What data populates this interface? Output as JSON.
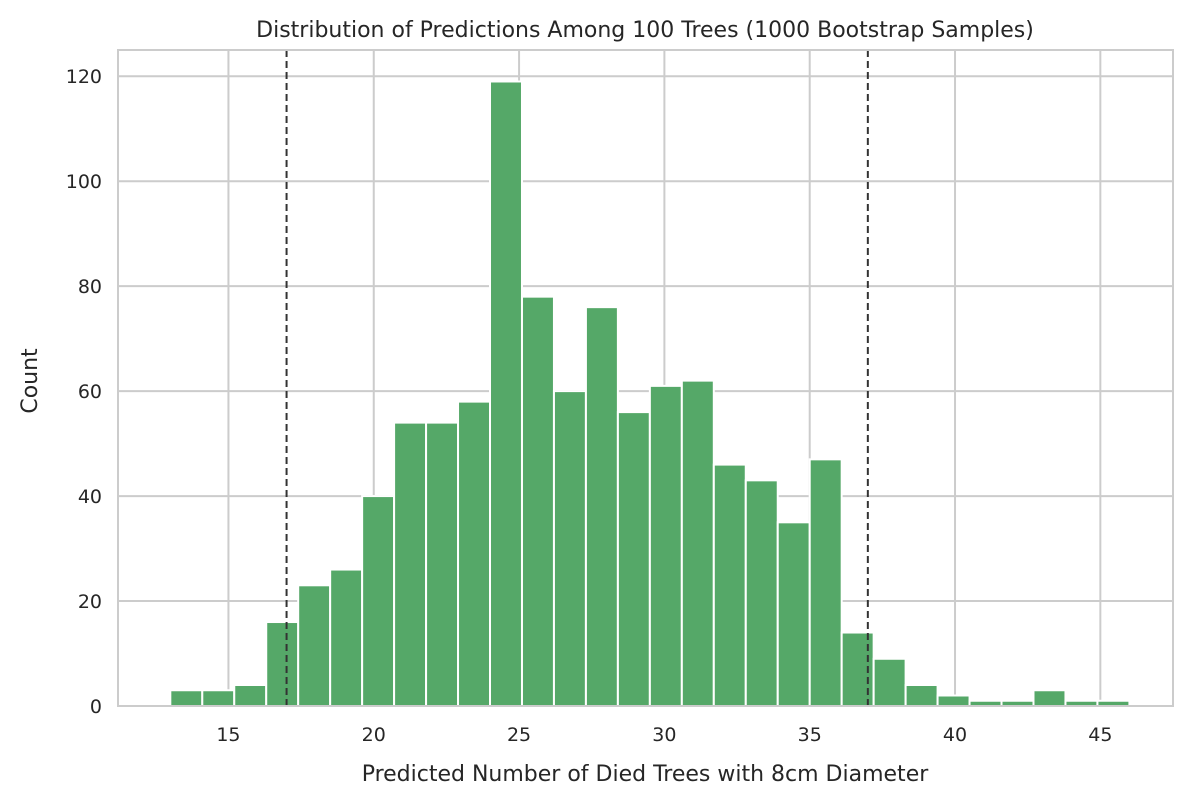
{
  "chart_data": {
    "type": "bar",
    "title": "Distribution of Predictions Among 100 Trees (1000 Bootstrap Samples)",
    "xlabel": "Predicted Number of Died Trees with 8cm Diameter",
    "ylabel": "Count",
    "xlim": [
      11.2,
      47.5
    ],
    "ylim": [
      0,
      125
    ],
    "xticks": [
      15,
      20,
      25,
      30,
      35,
      40,
      45
    ],
    "yticks": [
      0,
      20,
      40,
      60,
      80,
      100,
      120
    ],
    "grid": true,
    "bin_width": 1.1,
    "bins": [
      {
        "x_start": 13.0,
        "count": 3
      },
      {
        "x_start": 14.1,
        "count": 3
      },
      {
        "x_start": 15.2,
        "count": 4
      },
      {
        "x_start": 16.3,
        "count": 16
      },
      {
        "x_start": 17.4,
        "count": 23
      },
      {
        "x_start": 18.5,
        "count": 26
      },
      {
        "x_start": 19.6,
        "count": 40
      },
      {
        "x_start": 20.7,
        "count": 54
      },
      {
        "x_start": 21.8,
        "count": 54
      },
      {
        "x_start": 22.9,
        "count": 58
      },
      {
        "x_start": 24.0,
        "count": 119
      },
      {
        "x_start": 25.1,
        "count": 78
      },
      {
        "x_start": 26.2,
        "count": 60
      },
      {
        "x_start": 27.3,
        "count": 76
      },
      {
        "x_start": 28.4,
        "count": 56
      },
      {
        "x_start": 29.5,
        "count": 61
      },
      {
        "x_start": 30.6,
        "count": 62
      },
      {
        "x_start": 31.7,
        "count": 46
      },
      {
        "x_start": 32.8,
        "count": 43
      },
      {
        "x_start": 33.9,
        "count": 35
      },
      {
        "x_start": 35.0,
        "count": 47
      },
      {
        "x_start": 36.1,
        "count": 14
      },
      {
        "x_start": 37.2,
        "count": 9
      },
      {
        "x_start": 38.3,
        "count": 4
      },
      {
        "x_start": 39.4,
        "count": 2
      },
      {
        "x_start": 40.5,
        "count": 1
      },
      {
        "x_start": 41.6,
        "count": 1
      },
      {
        "x_start": 42.7,
        "count": 3
      },
      {
        "x_start": 43.8,
        "count": 1
      },
      {
        "x_start": 44.9,
        "count": 1
      }
    ],
    "reference_lines": [
      17.0,
      37.0
    ],
    "colors": {
      "bar": "#55a868",
      "bar_edge": "#ffffff",
      "grid": "#cccccc",
      "spine": "#cccccc",
      "reference_line": "#333333",
      "text": "#262626"
    }
  }
}
